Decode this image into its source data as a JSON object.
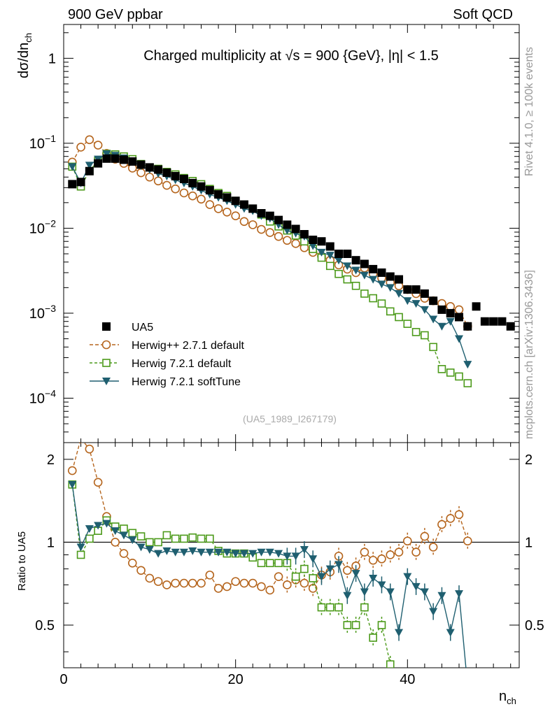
{
  "header": {
    "left": "900 GeV ppbar",
    "right": "Soft QCD"
  },
  "side_labels": {
    "top": "Rivet 4.1.0, ≥ 100k events",
    "bottom": "mcplots.cern.ch [arXiv:1306.3436]"
  },
  "colors": {
    "data": "#000000",
    "herwigpp": "#b5651d",
    "herwig72_default": "#4c9a1a",
    "herwig72_soft": "#1f5f70"
  },
  "chart_data": [
    {
      "panel": "main",
      "type": "scatter",
      "title_parts": [
        "Charged multiplicity at ",
        "√s",
        " = 900 {GeV}, |η| < 1.5"
      ],
      "ylabel": "dσ/dn_ch",
      "yscale": "log",
      "ylim": [
        3e-05,
        2.5
      ],
      "xlim": [
        0,
        53
      ],
      "yticks": [
        {
          "value": 1,
          "base": "1",
          "exp": ""
        },
        {
          "value": 0.1,
          "base": "10",
          "exp": "−1"
        },
        {
          "value": 0.01,
          "base": "10",
          "exp": "−2"
        },
        {
          "value": 0.001,
          "base": "10",
          "exp": "−3"
        },
        {
          "value": 0.0001,
          "base": "10",
          "exp": "−4"
        }
      ],
      "analysis_tag": "(UA5_1989_I267179)",
      "legend": [
        "UA5",
        "Herwig++ 2.7.1 default",
        "Herwig 7.2.1 default",
        "Herwig 7.2.1 softTune"
      ],
      "series": [
        {
          "name": "UA5",
          "marker": "square-filled",
          "x": [
            1,
            2,
            3,
            4,
            5,
            6,
            7,
            8,
            9,
            10,
            11,
            12,
            13,
            14,
            15,
            16,
            17,
            18,
            19,
            20,
            21,
            22,
            23,
            24,
            25,
            26,
            27,
            28,
            29,
            30,
            31,
            32,
            33,
            34,
            35,
            36,
            37,
            38,
            39,
            40,
            41,
            42,
            43,
            44,
            45,
            46,
            47,
            48,
            49,
            50,
            51,
            52
          ],
          "y": [
            0.033,
            0.035,
            0.047,
            0.058,
            0.066,
            0.066,
            0.064,
            0.061,
            0.056,
            0.052,
            0.049,
            0.045,
            0.041,
            0.038,
            0.034,
            0.031,
            0.028,
            0.025,
            0.023,
            0.021,
            0.019,
            0.017,
            0.015,
            0.014,
            0.0125,
            0.011,
            0.0098,
            0.0085,
            0.0073,
            0.007,
            0.0061,
            0.005,
            0.005,
            0.0042,
            0.0038,
            0.0033,
            0.003,
            0.0027,
            0.0025,
            0.0019,
            0.0019,
            0.0017,
            0.0014,
            0.0011,
            0.001,
            0.0009,
            0.0007,
            0.0012,
            0.0008,
            0.0008,
            0.0008,
            0.0007
          ]
        },
        {
          "name": "Herwig++ 2.7.1 default",
          "marker": "circle-open",
          "x": [
            1,
            2,
            3,
            4,
            5,
            6,
            7,
            8,
            9,
            10,
            11,
            12,
            13,
            14,
            15,
            16,
            17,
            18,
            19,
            20,
            21,
            22,
            23,
            24,
            25,
            26,
            27,
            28,
            29,
            30,
            31,
            32,
            33,
            34,
            35,
            36,
            37,
            38,
            39,
            40,
            41,
            42,
            43,
            44,
            45,
            46,
            47
          ],
          "y": [
            0.06,
            0.09,
            0.11,
            0.095,
            0.076,
            0.065,
            0.058,
            0.051,
            0.045,
            0.04,
            0.036,
            0.032,
            0.029,
            0.026,
            0.024,
            0.022,
            0.019,
            0.017,
            0.0155,
            0.014,
            0.012,
            0.011,
            0.0097,
            0.0089,
            0.008,
            0.0072,
            0.0066,
            0.0059,
            0.0052,
            0.0047,
            0.0042,
            0.0037,
            0.0033,
            0.003,
            0.0034,
            0.0029,
            0.0026,
            0.0023,
            0.0021,
            0.0019,
            0.0017,
            0.0015,
            0.0014,
            0.0013,
            0.0012,
            0.0011,
            0.0007
          ]
        },
        {
          "name": "Herwig 7.2.1 default",
          "marker": "square-open",
          "x": [
            1,
            2,
            3,
            4,
            5,
            6,
            7,
            8,
            9,
            10,
            11,
            12,
            13,
            14,
            15,
            16,
            17,
            18,
            19,
            20,
            21,
            22,
            23,
            24,
            25,
            26,
            27,
            28,
            29,
            30,
            31,
            32,
            33,
            34,
            35,
            36,
            37,
            38,
            39,
            40,
            41,
            42,
            43,
            44,
            45,
            46,
            47
          ],
          "y": [
            0.053,
            0.031,
            0.047,
            0.062,
            0.075,
            0.074,
            0.07,
            0.065,
            0.057,
            0.052,
            0.05,
            0.046,
            0.043,
            0.039,
            0.036,
            0.033,
            0.029,
            0.026,
            0.024,
            0.021,
            0.019,
            0.017,
            0.0145,
            0.012,
            0.0105,
            0.0094,
            0.0082,
            0.007,
            0.0057,
            0.0045,
            0.0036,
            0.0029,
            0.0025,
            0.0021,
            0.0017,
            0.0015,
            0.0013,
            0.00105,
            0.0009,
            0.00075,
            0.0006,
            0.00055,
            0.0004,
            0.00022,
            0.0002,
            0.00018,
            0.00015
          ]
        },
        {
          "name": "Herwig 7.2.1 softTune",
          "marker": "triangle-down-filled",
          "x": [
            1,
            2,
            3,
            4,
            5,
            6,
            7,
            8,
            9,
            10,
            11,
            12,
            13,
            14,
            15,
            16,
            17,
            18,
            19,
            20,
            21,
            22,
            23,
            24,
            25,
            26,
            27,
            28,
            29,
            30,
            31,
            32,
            33,
            34,
            35,
            36,
            37,
            38,
            39,
            40,
            41,
            42,
            43,
            44,
            45,
            46,
            47
          ],
          "y": [
            0.053,
            0.034,
            0.055,
            0.065,
            0.075,
            0.072,
            0.067,
            0.062,
            0.054,
            0.049,
            0.044,
            0.041,
            0.037,
            0.034,
            0.031,
            0.028,
            0.025,
            0.023,
            0.021,
            0.019,
            0.017,
            0.016,
            0.014,
            0.013,
            0.011,
            0.0094,
            0.0087,
            0.008,
            0.0062,
            0.0052,
            0.0048,
            0.0042,
            0.0036,
            0.0032,
            0.0028,
            0.0025,
            0.0022,
            0.002,
            0.0017,
            0.0014,
            0.0013,
            0.0011,
            0.00085,
            0.0007,
            0.0008,
            0.0005,
            0.00025
          ]
        }
      ]
    },
    {
      "panel": "ratio",
      "type": "line",
      "ylabel": "Ratio to UA5",
      "xlabel": "n_ch",
      "xlim": [
        0,
        53
      ],
      "ylim": [
        0.35,
        2.3
      ],
      "xticks": [
        0,
        20,
        40
      ],
      "yticks": [
        0.5,
        1,
        2
      ],
      "series": [
        {
          "name": "Herwig++ 2.7.1 default",
          "marker": "circle-open",
          "x": [
            1,
            2,
            3,
            4,
            5,
            6,
            7,
            8,
            9,
            10,
            11,
            12,
            13,
            14,
            15,
            16,
            17,
            18,
            19,
            20,
            21,
            22,
            23,
            24,
            25,
            26,
            27,
            28,
            29,
            30,
            31,
            32,
            33,
            34,
            35,
            36,
            37,
            38,
            39,
            40,
            41,
            42,
            43,
            44,
            45,
            46,
            47
          ],
          "y": [
            1.82,
            2.38,
            2.18,
            1.65,
            1.24,
            1.0,
            0.91,
            0.84,
            0.79,
            0.74,
            0.72,
            0.7,
            0.71,
            0.71,
            0.71,
            0.71,
            0.76,
            0.68,
            0.69,
            0.72,
            0.71,
            0.71,
            0.69,
            0.67,
            0.75,
            0.7,
            0.73,
            0.71,
            0.68,
            0.76,
            0.78,
            0.89,
            0.79,
            0.82,
            0.92,
            0.86,
            0.87,
            0.9,
            0.92,
            1.01,
            0.92,
            1.05,
            0.96,
            1.16,
            1.22,
            1.26,
            1.01
          ]
        },
        {
          "name": "Herwig 7.2.1 default",
          "marker": "square-open",
          "x": [
            1,
            2,
            3,
            4,
            5,
            6,
            7,
            8,
            9,
            10,
            11,
            12,
            13,
            14,
            15,
            16,
            17,
            18,
            19,
            20,
            21,
            22,
            23,
            24,
            25,
            26,
            27,
            28,
            29,
            30,
            31,
            32,
            33,
            34,
            35,
            36,
            37,
            38
          ],
          "y": [
            1.62,
            0.9,
            1.03,
            1.1,
            1.2,
            1.14,
            1.12,
            1.08,
            1.05,
            1.0,
            1.0,
            1.06,
            1.03,
            1.03,
            1.04,
            1.03,
            1.03,
            0.93,
            0.91,
            0.91,
            0.91,
            0.88,
            0.84,
            0.84,
            0.84,
            0.84,
            0.75,
            0.8,
            0.74,
            0.58,
            0.58,
            0.58,
            0.5,
            0.5,
            0.58,
            0.45,
            0.5,
            0.36
          ]
        },
        {
          "name": "Herwig 7.2.1 softTune",
          "marker": "triangle-down-filled",
          "x": [
            1,
            2,
            3,
            4,
            5,
            6,
            7,
            8,
            9,
            10,
            11,
            12,
            13,
            14,
            15,
            16,
            17,
            18,
            19,
            20,
            21,
            22,
            23,
            24,
            25,
            26,
            27,
            28,
            29,
            30,
            31,
            32,
            33,
            34,
            35,
            36,
            37,
            38,
            39,
            40,
            41,
            42,
            43,
            44,
            45,
            46,
            47
          ],
          "y": [
            1.62,
            0.96,
            1.12,
            1.15,
            1.17,
            1.1,
            1.06,
            1.02,
            0.96,
            0.94,
            0.91,
            0.93,
            0.92,
            0.92,
            0.93,
            0.92,
            0.92,
            0.92,
            0.92,
            0.91,
            0.91,
            0.91,
            0.92,
            0.92,
            0.91,
            0.89,
            0.89,
            0.94,
            0.87,
            0.75,
            0.8,
            0.83,
            0.64,
            0.77,
            0.66,
            0.74,
            0.7,
            0.66,
            0.47,
            0.75,
            0.69,
            0.66,
            0.56,
            0.64,
            0.47,
            0.65,
            0.3
          ]
        }
      ]
    }
  ]
}
